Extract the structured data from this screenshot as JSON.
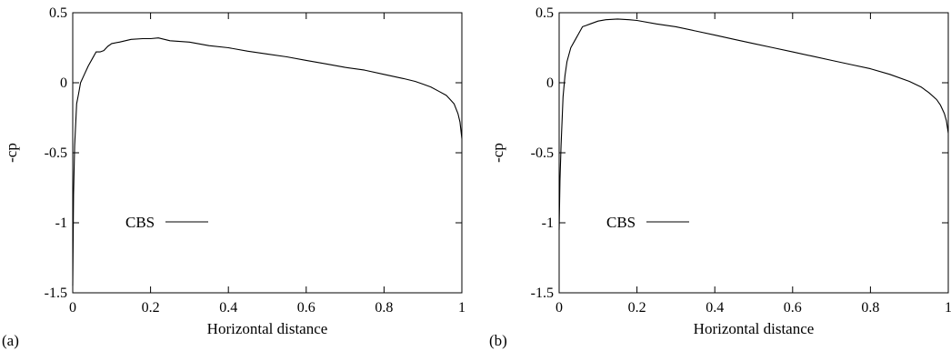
{
  "chart_data": [
    {
      "type": "line",
      "panel_label": "(a)",
      "xlabel": "Horizontal distance",
      "ylabel": "-cp",
      "xlim": [
        0,
        1
      ],
      "ylim": [
        -1.5,
        0.5
      ],
      "xticks": [
        0,
        0.2,
        0.4,
        0.6,
        0.8,
        1
      ],
      "xtick_labels": [
        "0",
        "0.2",
        "0.4",
        "0.6",
        "0.8",
        "1"
      ],
      "yticks": [
        -1.5,
        -1,
        -0.5,
        0,
        0.5
      ],
      "ytick_labels": [
        "-1.5",
        "-1",
        "-0.5",
        "0",
        "0.5"
      ],
      "legend": {
        "label": "CBS",
        "position": "lower-left"
      },
      "grid": false,
      "series": [
        {
          "name": "CBS",
          "x": [
            0,
            0.002,
            0.005,
            0.01,
            0.015,
            0.02,
            0.03,
            0.04,
            0.05,
            0.06,
            0.07,
            0.08,
            0.09,
            0.1,
            0.12,
            0.15,
            0.18,
            0.2,
            0.22,
            0.25,
            0.3,
            0.35,
            0.4,
            0.45,
            0.5,
            0.55,
            0.6,
            0.65,
            0.7,
            0.75,
            0.8,
            0.85,
            0.88,
            0.9,
            0.92,
            0.94,
            0.96,
            0.97,
            0.98,
            0.99,
            0.995,
            1
          ],
          "y": [
            -1.45,
            -0.8,
            -0.45,
            -0.15,
            -0.08,
            0.0,
            0.06,
            0.12,
            0.17,
            0.22,
            0.22,
            0.23,
            0.26,
            0.28,
            0.29,
            0.31,
            0.315,
            0.315,
            0.32,
            0.3,
            0.29,
            0.265,
            0.25,
            0.225,
            0.205,
            0.185,
            0.16,
            0.135,
            0.11,
            0.09,
            0.06,
            0.03,
            0.01,
            -0.01,
            -0.03,
            -0.06,
            -0.09,
            -0.12,
            -0.15,
            -0.22,
            -0.28,
            -0.4
          ]
        }
      ]
    },
    {
      "type": "line",
      "panel_label": "(b)",
      "xlabel": "Horizontal distance",
      "ylabel": "-cp",
      "xlim": [
        0,
        1
      ],
      "ylim": [
        -1.5,
        0.5
      ],
      "xticks": [
        0,
        0.2,
        0.4,
        0.6,
        0.8,
        1
      ],
      "xtick_labels": [
        "0",
        "0.2",
        "0.4",
        "0.6",
        "0.8",
        "1"
      ],
      "yticks": [
        -1.5,
        -1,
        -0.5,
        0,
        0.5
      ],
      "ytick_labels": [
        "-1.5",
        "-1",
        "-0.5",
        "0",
        "0.5"
      ],
      "legend": {
        "label": "CBS",
        "position": "lower-left"
      },
      "grid": false,
      "series": [
        {
          "name": "CBS",
          "x": [
            0,
            0.002,
            0.005,
            0.01,
            0.015,
            0.02,
            0.03,
            0.04,
            0.05,
            0.06,
            0.07,
            0.08,
            0.1,
            0.12,
            0.15,
            0.18,
            0.2,
            0.25,
            0.3,
            0.35,
            0.4,
            0.45,
            0.5,
            0.55,
            0.6,
            0.65,
            0.7,
            0.75,
            0.8,
            0.85,
            0.9,
            0.93,
            0.95,
            0.97,
            0.98,
            0.99,
            0.995,
            1
          ],
          "y": [
            -1.05,
            -0.7,
            -0.45,
            -0.1,
            0.05,
            0.15,
            0.25,
            0.3,
            0.35,
            0.4,
            0.41,
            0.42,
            0.44,
            0.45,
            0.455,
            0.45,
            0.445,
            0.42,
            0.4,
            0.37,
            0.34,
            0.31,
            0.28,
            0.25,
            0.22,
            0.19,
            0.16,
            0.13,
            0.1,
            0.06,
            0.01,
            -0.03,
            -0.07,
            -0.12,
            -0.16,
            -0.22,
            -0.27,
            -0.36
          ]
        }
      ]
    }
  ]
}
